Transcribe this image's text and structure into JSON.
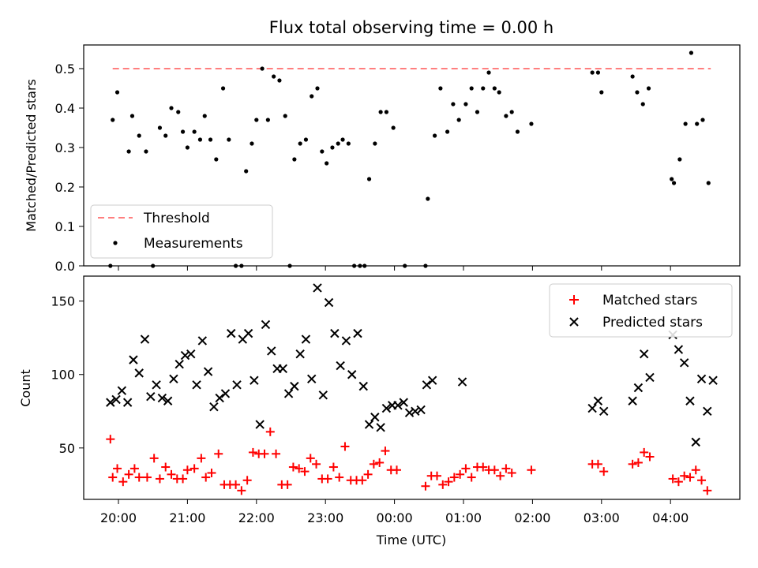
{
  "chart_data": [
    {
      "type": "scatter",
      "title": "Flux total observing time = 0.00 h",
      "ylabel": "Matched/Predicted stars",
      "xlabel": "",
      "ylim": [
        0,
        0.56
      ],
      "yticks": [
        "0.0",
        "0.1",
        "0.2",
        "0.3",
        "0.4",
        "0.5"
      ],
      "legend_position": "lower-left",
      "threshold": {
        "name": "Threshold",
        "value": 0.5,
        "x_start": "19:55",
        "x_end": "04:35",
        "color": "#ff7f7f",
        "style": "dashed"
      },
      "series": [
        {
          "name": "Measurements",
          "color": "#000000",
          "marker": "dot",
          "points": [
            [
              "19:53",
              0.0
            ],
            [
              "19:55",
              0.37
            ],
            [
              "19:59",
              0.44
            ],
            [
              "20:09",
              0.29
            ],
            [
              "20:12",
              0.38
            ],
            [
              "20:18",
              0.33
            ],
            [
              "20:24",
              0.29
            ],
            [
              "20:30",
              0.0
            ],
            [
              "20:36",
              0.35
            ],
            [
              "20:41",
              0.33
            ],
            [
              "20:46",
              0.4
            ],
            [
              "20:52",
              0.39
            ],
            [
              "20:56",
              0.34
            ],
            [
              "21:00",
              0.3
            ],
            [
              "21:06",
              0.34
            ],
            [
              "21:11",
              0.32
            ],
            [
              "21:15",
              0.38
            ],
            [
              "21:20",
              0.32
            ],
            [
              "21:25",
              0.27
            ],
            [
              "21:31",
              0.45
            ],
            [
              "21:36",
              0.32
            ],
            [
              "21:42",
              0.0
            ],
            [
              "21:47",
              0.0
            ],
            [
              "21:51",
              0.24
            ],
            [
              "21:56",
              0.31
            ],
            [
              "22:00",
              0.37
            ],
            [
              "22:05",
              0.5
            ],
            [
              "22:10",
              0.37
            ],
            [
              "22:15",
              0.48
            ],
            [
              "22:20",
              0.47
            ],
            [
              "22:25",
              0.38
            ],
            [
              "22:29",
              0.0
            ],
            [
              "22:33",
              0.27
            ],
            [
              "22:38",
              0.31
            ],
            [
              "22:43",
              0.32
            ],
            [
              "22:48",
              0.43
            ],
            [
              "22:53",
              0.45
            ],
            [
              "22:57",
              0.29
            ],
            [
              "23:01",
              0.26
            ],
            [
              "23:06",
              0.3
            ],
            [
              "23:11",
              0.31
            ],
            [
              "23:15",
              0.32
            ],
            [
              "23:20",
              0.31
            ],
            [
              "23:25",
              0.0
            ],
            [
              "23:30",
              0.0
            ],
            [
              "23:34",
              0.0
            ],
            [
              "23:38",
              0.22
            ],
            [
              "23:43",
              0.31
            ],
            [
              "23:48",
              0.39
            ],
            [
              "23:53",
              0.39
            ],
            [
              "23:59",
              0.35
            ],
            [
              "00:09",
              0.0
            ],
            [
              "00:27",
              0.0
            ],
            [
              "00:29",
              0.17
            ],
            [
              "00:35",
              0.33
            ],
            [
              "00:40",
              0.45
            ],
            [
              "00:46",
              0.34
            ],
            [
              "00:51",
              0.41
            ],
            [
              "00:56",
              0.37
            ],
            [
              "01:02",
              0.41
            ],
            [
              "01:07",
              0.45
            ],
            [
              "01:12",
              0.39
            ],
            [
              "01:17",
              0.45
            ],
            [
              "01:22",
              0.49
            ],
            [
              "01:27",
              0.45
            ],
            [
              "01:31",
              0.44
            ],
            [
              "01:37",
              0.38
            ],
            [
              "01:42",
              0.39
            ],
            [
              "01:47",
              0.34
            ],
            [
              "01:59",
              0.36
            ],
            [
              "02:52",
              0.49
            ],
            [
              "02:57",
              0.49
            ],
            [
              "03:00",
              0.44
            ],
            [
              "03:27",
              0.48
            ],
            [
              "03:31",
              0.44
            ],
            [
              "03:36",
              0.41
            ],
            [
              "03:41",
              0.45
            ],
            [
              "04:01",
              0.22
            ],
            [
              "04:03",
              0.21
            ],
            [
              "04:08",
              0.27
            ],
            [
              "04:13",
              0.36
            ],
            [
              "04:18",
              0.54
            ],
            [
              "04:23",
              0.36
            ],
            [
              "04:28",
              0.37
            ],
            [
              "04:33",
              0.21
            ]
          ]
        }
      ]
    },
    {
      "type": "scatter",
      "title": "",
      "xlabel": "Time (UTC)",
      "ylabel": "Count",
      "ylim": [
        15,
        167
      ],
      "yticks": [
        "50",
        "100",
        "150"
      ],
      "xticks": [
        "20:00",
        "21:00",
        "22:00",
        "23:00",
        "00:00",
        "01:00",
        "02:00",
        "03:00",
        "04:00"
      ],
      "legend_position": "top-right",
      "series": [
        {
          "name": "Matched stars",
          "color": "#ff0000",
          "marker": "plus",
          "points": [
            [
              "19:53",
              56
            ],
            [
              "19:55",
              30
            ],
            [
              "19:59",
              36
            ],
            [
              "20:04",
              27
            ],
            [
              "20:09",
              32
            ],
            [
              "20:14",
              36
            ],
            [
              "20:18",
              30
            ],
            [
              "20:25",
              30
            ],
            [
              "20:31",
              43
            ],
            [
              "20:36",
              29
            ],
            [
              "20:41",
              37
            ],
            [
              "20:46",
              32
            ],
            [
              "20:51",
              29
            ],
            [
              "20:56",
              29
            ],
            [
              "21:00",
              35
            ],
            [
              "21:06",
              36
            ],
            [
              "21:12",
              43
            ],
            [
              "21:16",
              30
            ],
            [
              "21:21",
              33
            ],
            [
              "21:27",
              46
            ],
            [
              "21:32",
              25
            ],
            [
              "21:37",
              25
            ],
            [
              "21:42",
              25
            ],
            [
              "21:47",
              21
            ],
            [
              "21:52",
              28
            ],
            [
              "21:57",
              47
            ],
            [
              "22:02",
              46
            ],
            [
              "22:07",
              46
            ],
            [
              "22:12",
              61
            ],
            [
              "22:17",
              46
            ],
            [
              "22:22",
              25
            ],
            [
              "22:27",
              25
            ],
            [
              "22:32",
              37
            ],
            [
              "22:37",
              36
            ],
            [
              "22:42",
              34
            ],
            [
              "22:47",
              43
            ],
            [
              "22:52",
              39
            ],
            [
              "22:57",
              29
            ],
            [
              "23:02",
              29
            ],
            [
              "23:07",
              37
            ],
            [
              "23:12",
              30
            ],
            [
              "23:17",
              51
            ],
            [
              "23:22",
              28
            ],
            [
              "23:27",
              28
            ],
            [
              "23:32",
              28
            ],
            [
              "23:37",
              32
            ],
            [
              "23:42",
              39
            ],
            [
              "23:47",
              40
            ],
            [
              "23:52",
              48
            ],
            [
              "23:57",
              35
            ],
            [
              "00:02",
              35
            ],
            [
              "00:27",
              24
            ],
            [
              "00:32",
              31
            ],
            [
              "00:37",
              31
            ],
            [
              "00:42",
              25
            ],
            [
              "00:47",
              27
            ],
            [
              "00:52",
              30
            ],
            [
              "00:57",
              32
            ],
            [
              "01:02",
              36
            ],
            [
              "01:07",
              30
            ],
            [
              "01:12",
              37
            ],
            [
              "01:17",
              37
            ],
            [
              "01:22",
              35
            ],
            [
              "01:27",
              35
            ],
            [
              "01:32",
              31
            ],
            [
              "01:37",
              36
            ],
            [
              "01:42",
              33
            ],
            [
              "01:59",
              35
            ],
            [
              "02:52",
              39
            ],
            [
              "02:57",
              39
            ],
            [
              "03:02",
              34
            ],
            [
              "03:27",
              39
            ],
            [
              "03:32",
              40
            ],
            [
              "03:37",
              47
            ],
            [
              "03:42",
              44
            ],
            [
              "04:02",
              29
            ],
            [
              "04:07",
              27
            ],
            [
              "04:12",
              31
            ],
            [
              "04:17",
              30
            ],
            [
              "04:22",
              35
            ],
            [
              "04:27",
              28
            ],
            [
              "04:32",
              21
            ]
          ]
        },
        {
          "name": "Predicted stars",
          "color": "#000000",
          "marker": "x",
          "points": [
            [
              "19:53",
              81
            ],
            [
              "19:58",
              83
            ],
            [
              "20:03",
              89
            ],
            [
              "20:08",
              81
            ],
            [
              "20:13",
              110
            ],
            [
              "20:18",
              101
            ],
            [
              "20:23",
              124
            ],
            [
              "20:28",
              85
            ],
            [
              "20:33",
              93
            ],
            [
              "20:38",
              84
            ],
            [
              "20:43",
              82
            ],
            [
              "20:48",
              97
            ],
            [
              "20:53",
              107
            ],
            [
              "20:58",
              113
            ],
            [
              "21:03",
              114
            ],
            [
              "21:08",
              93
            ],
            [
              "21:13",
              123
            ],
            [
              "21:18",
              102
            ],
            [
              "21:23",
              78
            ],
            [
              "21:28",
              84
            ],
            [
              "21:33",
              87
            ],
            [
              "21:38",
              128
            ],
            [
              "21:43",
              93
            ],
            [
              "21:48",
              124
            ],
            [
              "21:53",
              128
            ],
            [
              "21:58",
              96
            ],
            [
              "22:03",
              66
            ],
            [
              "22:08",
              134
            ],
            [
              "22:13",
              116
            ],
            [
              "22:18",
              104
            ],
            [
              "22:23",
              104
            ],
            [
              "22:28",
              87
            ],
            [
              "22:33",
              92
            ],
            [
              "22:38",
              114
            ],
            [
              "22:43",
              124
            ],
            [
              "22:48",
              97
            ],
            [
              "22:53",
              159
            ],
            [
              "22:58",
              86
            ],
            [
              "23:03",
              149
            ],
            [
              "23:08",
              128
            ],
            [
              "23:13",
              106
            ],
            [
              "23:18",
              123
            ],
            [
              "23:23",
              100
            ],
            [
              "23:28",
              128
            ],
            [
              "23:33",
              92
            ],
            [
              "23:38",
              66
            ],
            [
              "23:43",
              71
            ],
            [
              "23:48",
              64
            ],
            [
              "23:53",
              77
            ],
            [
              "23:58",
              79
            ],
            [
              "00:03",
              79
            ],
            [
              "00:08",
              81
            ],
            [
              "00:13",
              74
            ],
            [
              "00:18",
              75
            ],
            [
              "00:23",
              76
            ],
            [
              "00:28",
              93
            ],
            [
              "00:33",
              96
            ],
            [
              "00:59",
              95
            ],
            [
              "02:52",
              77
            ],
            [
              "02:57",
              82
            ],
            [
              "03:02",
              75
            ],
            [
              "03:27",
              82
            ],
            [
              "03:32",
              91
            ],
            [
              "03:37",
              114
            ],
            [
              "03:42",
              98
            ],
            [
              "04:02",
              127
            ],
            [
              "04:07",
              117
            ],
            [
              "04:12",
              108
            ],
            [
              "04:17",
              82
            ],
            [
              "04:22",
              54
            ],
            [
              "04:27",
              97
            ],
            [
              "04:32",
              75
            ],
            [
              "04:37",
              96
            ]
          ]
        }
      ]
    }
  ]
}
